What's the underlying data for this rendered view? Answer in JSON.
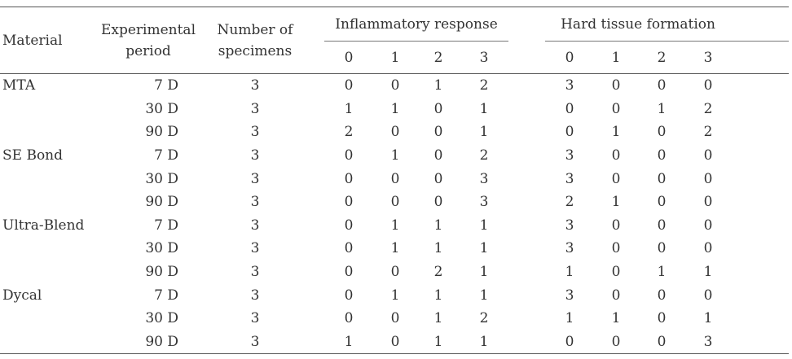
{
  "headers": {
    "material": "Material",
    "period_line1": "Experimental",
    "period_line2": "period",
    "specimens_line1": "Number of",
    "specimens_line2": "specimens",
    "inflammatory": "Inflammatory response",
    "hard_tissue": "Hard tissue formation",
    "scores": [
      "0",
      "1",
      "2",
      "3"
    ]
  },
  "rows": [
    {
      "material": "MTA",
      "period": "7 D",
      "n": "3",
      "inf": [
        "0",
        "0",
        "1",
        "2"
      ],
      "hard": [
        "3",
        "0",
        "0",
        "0"
      ]
    },
    {
      "material": "",
      "period": "30 D",
      "n": "3",
      "inf": [
        "1",
        "1",
        "0",
        "1"
      ],
      "hard": [
        "0",
        "0",
        "1",
        "2"
      ]
    },
    {
      "material": "",
      "period": "90 D",
      "n": "3",
      "inf": [
        "2",
        "0",
        "0",
        "1"
      ],
      "hard": [
        "0",
        "1",
        "0",
        "2"
      ]
    },
    {
      "material": "SE Bond",
      "period": "7 D",
      "n": "3",
      "inf": [
        "0",
        "1",
        "0",
        "2"
      ],
      "hard": [
        "3",
        "0",
        "0",
        "0"
      ]
    },
    {
      "material": "",
      "period": "30 D",
      "n": "3",
      "inf": [
        "0",
        "0",
        "0",
        "3"
      ],
      "hard": [
        "3",
        "0",
        "0",
        "0"
      ]
    },
    {
      "material": "",
      "period": "90 D",
      "n": "3",
      "inf": [
        "0",
        "0",
        "0",
        "3"
      ],
      "hard": [
        "2",
        "1",
        "0",
        "0"
      ]
    },
    {
      "material": "Ultra-Blend",
      "period": "7 D",
      "n": "3",
      "inf": [
        "0",
        "1",
        "1",
        "1"
      ],
      "hard": [
        "3",
        "0",
        "0",
        "0"
      ]
    },
    {
      "material": "",
      "period": "30 D",
      "n": "3",
      "inf": [
        "0",
        "1",
        "1",
        "1"
      ],
      "hard": [
        "3",
        "0",
        "0",
        "0"
      ]
    },
    {
      "material": "",
      "period": "90 D",
      "n": "3",
      "inf": [
        "0",
        "0",
        "2",
        "1"
      ],
      "hard": [
        "1",
        "0",
        "1",
        "1"
      ]
    },
    {
      "material": "Dycal",
      "period": "7 D",
      "n": "3",
      "inf": [
        "0",
        "1",
        "1",
        "1"
      ],
      "hard": [
        "3",
        "0",
        "0",
        "0"
      ]
    },
    {
      "material": "",
      "period": "30 D",
      "n": "3",
      "inf": [
        "0",
        "0",
        "1",
        "2"
      ],
      "hard": [
        "1",
        "1",
        "0",
        "1"
      ]
    },
    {
      "material": "",
      "period": "90 D",
      "n": "3",
      "inf": [
        "1",
        "0",
        "1",
        "1"
      ],
      "hard": [
        "0",
        "0",
        "0",
        "3"
      ]
    }
  ]
}
